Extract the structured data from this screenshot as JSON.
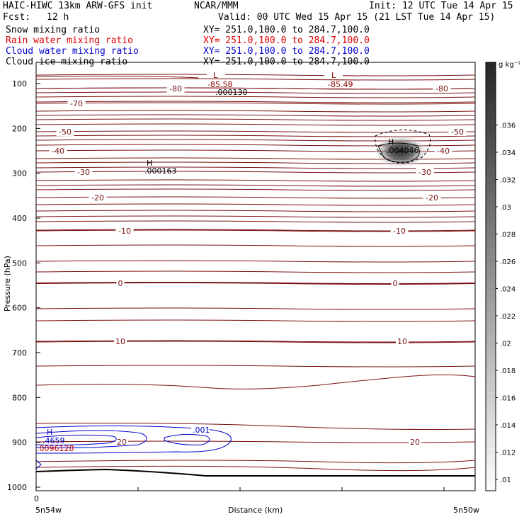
{
  "header": {
    "title": "HAIC-HIWC 13km ARW-GFS init",
    "org": "NCAR/MMM",
    "init": "Init: 12 UTC Tue 14 Apr 15",
    "fcst_label": "Fcst:",
    "fcst_value": "12 h",
    "valid": "Valid: 00 UTC Wed 15 Apr 15 (21 LST Tue 14 Apr 15)"
  },
  "fields": [
    {
      "name": "Snow mixing ratio",
      "xy": "XY= 251.0,100.0 to 284.7,100.0",
      "color": "#000000"
    },
    {
      "name": "Rain water mixing ratio",
      "xy": "XY= 251.0,100.0 to 284.7,100.0",
      "color": "#e00000"
    },
    {
      "name": "Cloud water mixing ratio",
      "xy": "XY= 251.0,100.0 to 284.7,100.0",
      "color": "#0000cc"
    },
    {
      "name": "Cloud ice mixing ratio",
      "xy": "XY= 251.0,100.0 to 284.7,100.0",
      "color": "#000000"
    }
  ],
  "chart_data": {
    "type": "heatmap",
    "xlabel": "Distance (km)",
    "ylabel": "Pressure (hPa)",
    "x_left_label": "5n54w",
    "x_right_label": "5n50w",
    "x_zero_label": "0",
    "y_ticks": [
      100,
      200,
      300,
      400,
      500,
      600,
      700,
      800,
      900,
      1000
    ],
    "ylim": [
      1050,
      50
    ],
    "colorbar": {
      "unit": "g kg⁻¹",
      "ticks": [
        ".01",
        ".012",
        ".014",
        ".016",
        ".018",
        ".02",
        ".022",
        ".024",
        ".026",
        ".028",
        ".03",
        ".032",
        ".034",
        ".036"
      ]
    },
    "temperature_contours": [
      {
        "value": -80,
        "label": "-80"
      },
      {
        "value": -70,
        "label": "-70"
      },
      {
        "value": -50,
        "label": "-50"
      },
      {
        "value": -40,
        "label": "-40"
      },
      {
        "value": -30,
        "label": "-30"
      },
      {
        "value": -20,
        "label": "-20"
      },
      {
        "value": -10,
        "label": "-10"
      },
      {
        "value": 0,
        "label": "0"
      },
      {
        "value": 10,
        "label": "10"
      },
      {
        "value": 20,
        "label": "20"
      }
    ],
    "cloud_water_label": ".001",
    "extrema": [
      {
        "type": "L",
        "value": "-85.58"
      },
      {
        "type": "L",
        "value": "-85.49"
      },
      {
        "type": "H",
        "value": ".000130"
      },
      {
        "type": "H",
        "value": ".000163"
      },
      {
        "type": "H",
        "value": ".004046"
      },
      {
        "type": "H",
        "value": ".4659"
      },
      {
        "type": "H",
        "value": ".0096128"
      }
    ]
  }
}
